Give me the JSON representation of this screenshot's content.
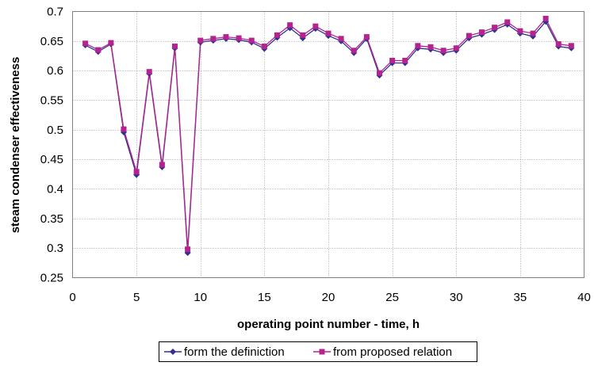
{
  "chart_data": {
    "type": "line",
    "xlabel": "operating point number - time, h",
    "ylabel": "steam condenser effectiveness",
    "xlim": [
      0,
      40
    ],
    "ylim": [
      0.25,
      0.7
    ],
    "x_ticks": [
      0,
      5,
      10,
      15,
      20,
      25,
      30,
      35,
      40
    ],
    "x_tick_labels": [
      "0",
      "5",
      "10",
      "15",
      "20",
      "25",
      "30",
      "35",
      "40"
    ],
    "y_ticks": [
      0.25,
      0.3,
      0.35,
      0.4,
      0.45,
      0.5,
      0.55,
      0.6,
      0.65,
      0.7
    ],
    "y_tick_labels": [
      "0.25",
      "0.3",
      "0.35",
      "0.4",
      "0.45",
      "0.5",
      "0.55",
      "0.6",
      "0.65",
      "0.7"
    ],
    "grid": "dotted",
    "legend_position": "bottom",
    "x": [
      1,
      2,
      3,
      4,
      5,
      6,
      7,
      8,
      9,
      10,
      11,
      12,
      13,
      14,
      15,
      16,
      17,
      18,
      19,
      20,
      21,
      22,
      23,
      24,
      25,
      26,
      27,
      28,
      29,
      30,
      31,
      32,
      33,
      34,
      35,
      36,
      37,
      38,
      39
    ],
    "series": [
      {
        "name": "form the definiction",
        "color": "#2e3192",
        "marker": "diamond",
        "values": [
          0.643,
          0.632,
          0.645,
          0.496,
          0.424,
          0.595,
          0.437,
          0.638,
          0.292,
          0.648,
          0.651,
          0.654,
          0.652,
          0.648,
          0.637,
          0.656,
          0.672,
          0.655,
          0.671,
          0.659,
          0.65,
          0.63,
          0.654,
          0.592,
          0.613,
          0.613,
          0.638,
          0.636,
          0.63,
          0.634,
          0.655,
          0.661,
          0.669,
          0.678,
          0.663,
          0.658,
          0.683,
          0.641,
          0.638
        ]
      },
      {
        "name": "from proposed relation",
        "color": "#b5238f",
        "marker": "square",
        "values": [
          0.646,
          0.635,
          0.647,
          0.501,
          0.429,
          0.598,
          0.441,
          0.641,
          0.298,
          0.651,
          0.654,
          0.657,
          0.655,
          0.651,
          0.641,
          0.66,
          0.677,
          0.66,
          0.675,
          0.663,
          0.654,
          0.634,
          0.657,
          0.596,
          0.617,
          0.617,
          0.642,
          0.64,
          0.634,
          0.638,
          0.659,
          0.665,
          0.673,
          0.682,
          0.667,
          0.663,
          0.688,
          0.645,
          0.642
        ]
      }
    ]
  }
}
